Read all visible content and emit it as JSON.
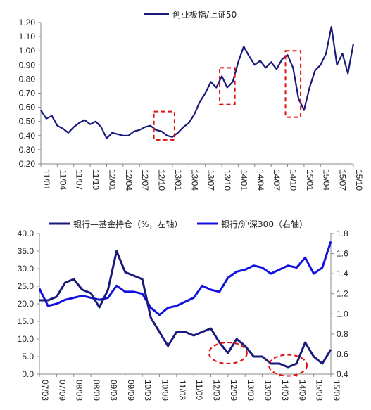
{
  "chart_data": [
    {
      "type": "line",
      "legend": {
        "placement": "top-center",
        "entries": [
          "创业板指/上证50"
        ]
      },
      "series": [
        {
          "name": "创业板指/上证50",
          "color": "#1a1a7a",
          "points": [
            [
              "11/01",
              0.58
            ],
            [
              "11/02",
              0.52
            ],
            [
              "11/03",
              0.54
            ],
            [
              "11/04",
              0.47
            ],
            [
              "11/05",
              0.45
            ],
            [
              "11/06",
              0.42
            ],
            [
              "11/07",
              0.46
            ],
            [
              "11/08",
              0.49
            ],
            [
              "11/09",
              0.51
            ],
            [
              "11/10",
              0.48
            ],
            [
              "11/11",
              0.5
            ],
            [
              "11/12",
              0.46
            ],
            [
              "12/01",
              0.38
            ],
            [
              "12/02",
              0.42
            ],
            [
              "12/03",
              0.41
            ],
            [
              "12/04",
              0.4
            ],
            [
              "12/05",
              0.4
            ],
            [
              "12/06",
              0.43
            ],
            [
              "12/07",
              0.44
            ],
            [
              "12/08",
              0.46
            ],
            [
              "12/09",
              0.47
            ],
            [
              "12/10",
              0.44
            ],
            [
              "12/11",
              0.43
            ],
            [
              "12/12",
              0.4
            ],
            [
              "13/01",
              0.39
            ],
            [
              "13/02",
              0.42
            ],
            [
              "13/03",
              0.46
            ],
            [
              "13/04",
              0.49
            ],
            [
              "13/05",
              0.55
            ],
            [
              "13/06",
              0.64
            ],
            [
              "13/07",
              0.7
            ],
            [
              "13/08",
              0.78
            ],
            [
              "13/09",
              0.74
            ],
            [
              "13/10",
              0.82
            ],
            [
              "13/11",
              0.74
            ],
            [
              "13/12",
              0.78
            ],
            [
              "14/01",
              0.92
            ],
            [
              "14/02",
              1.03
            ],
            [
              "14/03",
              0.96
            ],
            [
              "14/04",
              0.9
            ],
            [
              "14/05",
              0.93
            ],
            [
              "14/06",
              0.88
            ],
            [
              "14/07",
              0.92
            ],
            [
              "14/08",
              0.87
            ],
            [
              "14/09",
              0.94
            ],
            [
              "14/10",
              0.97
            ],
            [
              "14/11",
              0.88
            ],
            [
              "14/12",
              0.66
            ],
            [
              "15/01",
              0.58
            ],
            [
              "15/02",
              0.74
            ],
            [
              "15/03",
              0.86
            ],
            [
              "15/04",
              0.9
            ],
            [
              "15/05",
              0.98
            ],
            [
              "15/06",
              1.17
            ],
            [
              "15/07",
              0.9
            ],
            [
              "15/08",
              0.98
            ],
            [
              "15/09",
              0.84
            ],
            [
              "15/10",
              1.05
            ]
          ]
        }
      ],
      "x_tick_labels": [
        "11/01",
        "11/04",
        "11/07",
        "11/10",
        "12/01",
        "12/04",
        "12/07",
        "12/10",
        "13/01",
        "13/04",
        "13/07",
        "13/10",
        "14/01",
        "14/04",
        "14/07",
        "14/10",
        "15/01",
        "15/04",
        "15/07",
        "15/10"
      ],
      "y_tick_labels": [
        "0.20",
        "0.30",
        "0.40",
        "0.50",
        "0.60",
        "0.70",
        "0.80",
        "0.90",
        "1.00",
        "1.10",
        "1.20"
      ],
      "ylim": [
        0.2,
        1.2
      ],
      "grid": false,
      "highlight_boxes_dashed_red": [
        {
          "x_range": [
            "12/10",
            "13/01"
          ],
          "y_range": [
            0.37,
            0.57
          ]
        },
        {
          "x_range": [
            "13/10",
            "13/12"
          ],
          "y_range": [
            0.62,
            0.88
          ]
        },
        {
          "x_range": [
            "14/10",
            "14/12"
          ],
          "y_range": [
            0.53,
            1.0
          ]
        }
      ]
    },
    {
      "type": "line",
      "legend": {
        "placement": "top",
        "entries": [
          "银行—基金持仓（%，左轴）",
          "银行/沪深300（右轴）"
        ]
      },
      "series": [
        {
          "name": "银行—基金持仓（%，左轴）",
          "axis": "left",
          "color": "#1a1a7a",
          "points": [
            [
              "07/03",
              21
            ],
            [
              "07/06",
              21
            ],
            [
              "07/09",
              22
            ],
            [
              "07/12",
              26
            ],
            [
              "08/03",
              27
            ],
            [
              "08/06",
              24
            ],
            [
              "08/09",
              23
            ],
            [
              "08/12",
              19
            ],
            [
              "09/03",
              24
            ],
            [
              "09/06",
              35
            ],
            [
              "09/09",
              29
            ],
            [
              "09/12",
              28
            ],
            [
              "10/03",
              27
            ],
            [
              "10/06",
              16
            ],
            [
              "10/09",
              12
            ],
            [
              "10/12",
              8
            ],
            [
              "11/03",
              12
            ],
            [
              "11/06",
              12
            ],
            [
              "11/09",
              11
            ],
            [
              "11/12",
              12
            ],
            [
              "12/03",
              13
            ],
            [
              "12/06",
              9
            ],
            [
              "12/09",
              6
            ],
            [
              "12/12",
              10
            ],
            [
              "13/03",
              8
            ],
            [
              "13/06",
              5
            ],
            [
              "13/09",
              5
            ],
            [
              "13/12",
              3
            ],
            [
              "14/03",
              3
            ],
            [
              "14/06",
              2
            ],
            [
              "14/09",
              3
            ],
            [
              "14/12",
              9
            ],
            [
              "15/03",
              5
            ],
            [
              "15/06",
              3
            ],
            [
              "15/09",
              7
            ]
          ]
        },
        {
          "name": "银行/沪深300（右轴）",
          "axis": "right",
          "color": "#1010e0",
          "points": [
            [
              "07/03",
              1.25
            ],
            [
              "07/06",
              1.08
            ],
            [
              "07/09",
              1.1
            ],
            [
              "07/12",
              1.14
            ],
            [
              "08/03",
              1.16
            ],
            [
              "08/06",
              1.18
            ],
            [
              "08/09",
              1.16
            ],
            [
              "08/12",
              1.14
            ],
            [
              "09/03",
              1.16
            ],
            [
              "09/06",
              1.28
            ],
            [
              "09/09",
              1.22
            ],
            [
              "09/12",
              1.22
            ],
            [
              "10/03",
              1.2
            ],
            [
              "10/06",
              1.06
            ],
            [
              "10/09",
              0.99
            ],
            [
              "10/12",
              1.06
            ],
            [
              "11/03",
              1.08
            ],
            [
              "11/06",
              1.12
            ],
            [
              "11/09",
              1.16
            ],
            [
              "11/12",
              1.28
            ],
            [
              "12/03",
              1.24
            ],
            [
              "12/06",
              1.22
            ],
            [
              "12/09",
              1.36
            ],
            [
              "12/12",
              1.42
            ],
            [
              "13/03",
              1.44
            ],
            [
              "13/06",
              1.48
            ],
            [
              "13/09",
              1.46
            ],
            [
              "13/12",
              1.4
            ],
            [
              "14/03",
              1.44
            ],
            [
              "14/06",
              1.48
            ],
            [
              "14/09",
              1.46
            ],
            [
              "14/12",
              1.56
            ],
            [
              "15/03",
              1.4
            ],
            [
              "15/06",
              1.46
            ],
            [
              "15/09",
              1.72
            ]
          ]
        }
      ],
      "x_tick_labels": [
        "07/03",
        "07/09",
        "08/03",
        "08/09",
        "09/03",
        "09/09",
        "10/03",
        "10/09",
        "11/03",
        "11/09",
        "12/03",
        "12/09",
        "13/03",
        "13/09",
        "14/03",
        "14/09",
        "15/03",
        "15/09"
      ],
      "y_left_tick_labels": [
        "0.0",
        "5.0",
        "10.0",
        "15.0",
        "20.0",
        "25.0",
        "30.0",
        "35.0",
        "40.0"
      ],
      "y_right_tick_labels": [
        "0.4",
        "0.6",
        "0.8",
        "1.0",
        "1.2",
        "1.4",
        "1.6",
        "1.8"
      ],
      "ylim_left": [
        0,
        40
      ],
      "ylim_right": [
        0.4,
        1.8
      ],
      "grid": false,
      "highlight_ellipses_dashed_red": [
        {
          "x_center": "12/09",
          "y_center_left": 6.0
        },
        {
          "x_center": "14/06",
          "y_center_left": 2.5
        }
      ]
    }
  ]
}
